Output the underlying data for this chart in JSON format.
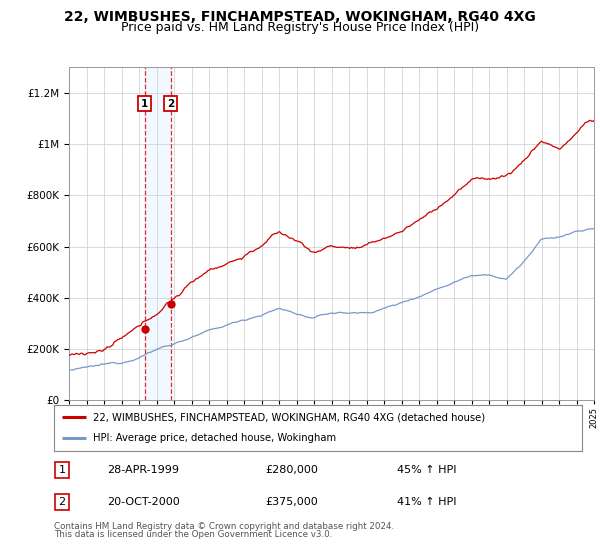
{
  "title": "22, WIMBUSHES, FINCHAMPSTEAD, WOKINGHAM, RG40 4XG",
  "subtitle": "Price paid vs. HM Land Registry's House Price Index (HPI)",
  "legend_line1": "22, WIMBUSHES, FINCHAMPSTEAD, WOKINGHAM, RG40 4XG (detached house)",
  "legend_line2": "HPI: Average price, detached house, Wokingham",
  "sale1_date": "28-APR-1999",
  "sale1_price": "£280,000",
  "sale1_hpi": "45% ↑ HPI",
  "sale1_year": 1999.32,
  "sale1_value": 280000,
  "sale2_date": "20-OCT-2000",
  "sale2_price": "£375,000",
  "sale2_hpi": "41% ↑ HPI",
  "sale2_year": 2000.8,
  "sale2_value": 375000,
  "footnote1": "Contains HM Land Registry data © Crown copyright and database right 2024.",
  "footnote2": "This data is licensed under the Open Government Licence v3.0.",
  "ylim": [
    0,
    1300000
  ],
  "yticks": [
    0,
    200000,
    400000,
    600000,
    800000,
    1000000,
    1200000
  ],
  "xlim_start": 1995,
  "xlim_end": 2025,
  "background_color": "#ffffff",
  "plot_bg_color": "#ffffff",
  "grid_color": "#cccccc",
  "red_color": "#cc0000",
  "blue_color": "#7799cc",
  "shade_color": "#ddeeff",
  "title_fontsize": 10,
  "subtitle_fontsize": 9
}
